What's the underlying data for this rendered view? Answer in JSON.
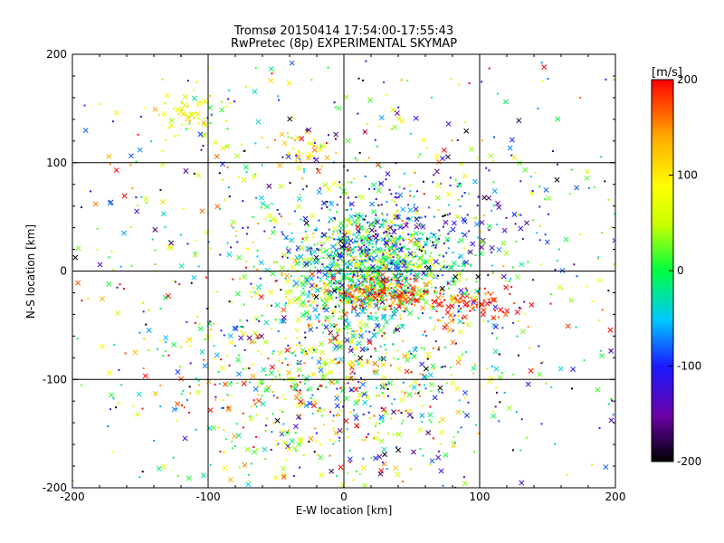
{
  "chart_data": {
    "type": "scatter",
    "title_line1": "Tromsø 20150414 17:54:00-17:55:43",
    "title_line2": "RwPretec (8p) EXPERIMENTAL SKYMAP",
    "xlabel": "E-W location [km]",
    "ylabel": "N-S location [km]",
    "xlim": [
      -200,
      200
    ],
    "ylim": [
      -200,
      200
    ],
    "xticks": [
      "-200",
      "-100",
      "0",
      "100",
      "200"
    ],
    "yticks": [
      "-200",
      "-100",
      "0",
      "100",
      "200"
    ],
    "grid_x": [
      -100,
      0,
      100
    ],
    "grid_y": [
      -100,
      0,
      100
    ],
    "grid": true,
    "markers": [
      "x",
      "dot"
    ],
    "colorbar": {
      "label": "[m/s]",
      "range": [
        -200,
        200
      ],
      "ticks": [
        "200",
        "100",
        "0",
        "-100",
        "-200"
      ],
      "colormap": "rainbow",
      "colors": [
        "#000000",
        "#6a00a8",
        "#1a1aff",
        "#00c8ff",
        "#00ff40",
        "#c8ff00",
        "#ffff00",
        "#ffaa00",
        "#ff0000"
      ]
    },
    "clusters": [
      {
        "cx": 20,
        "cy": 0,
        "sx": 30,
        "sy": 25,
        "n": 900,
        "v": -10,
        "vs": 60
      },
      {
        "cx": 25,
        "cy": -20,
        "sx": 18,
        "sy": 8,
        "n": 180,
        "v": 175,
        "vs": 25
      },
      {
        "cx": 50,
        "cy": 35,
        "sx": 40,
        "sy": 30,
        "n": 220,
        "v": -120,
        "vs": 40
      },
      {
        "cx": 95,
        "cy": -30,
        "sx": 18,
        "sy": 8,
        "n": 90,
        "v": 185,
        "vs": 20
      },
      {
        "cx": 40,
        "cy": -110,
        "sx": 40,
        "sy": 40,
        "n": 160,
        "v": 0,
        "vs": 120
      },
      {
        "cx": -110,
        "cy": 148,
        "sx": 12,
        "sy": 10,
        "n": 60,
        "v": 80,
        "vs": 40
      },
      {
        "cx": -30,
        "cy": 110,
        "sx": 10,
        "sy": 10,
        "n": 40,
        "v": 120,
        "vs": 30
      },
      {
        "cx": -30,
        "cy": -100,
        "sx": 50,
        "sy": 50,
        "n": 500,
        "v": 50,
        "vs": 110
      },
      {
        "cx": 0,
        "cy": 0,
        "sx": 110,
        "sy": 110,
        "n": 900,
        "v": 10,
        "vs": 110
      },
      {
        "cx": 0,
        "cy": 0,
        "sx": 200,
        "sy": 200,
        "n": 300,
        "v": 0,
        "vs": 130
      }
    ]
  }
}
